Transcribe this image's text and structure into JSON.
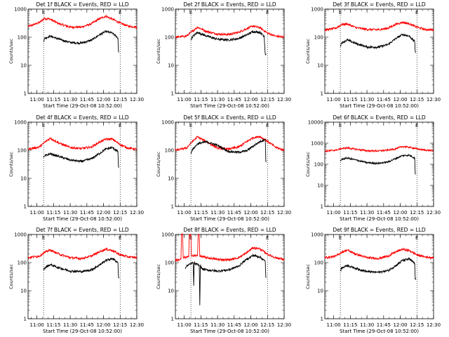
{
  "figure": {
    "background": "#ffffff"
  },
  "colors": {
    "events": "#000000",
    "lld": "#ff0000",
    "axis": "#000000"
  },
  "chart_data": [
    {
      "type": "line",
      "title": "Det 1f BLACK = Events, RED = LLD",
      "xlabel": "Start Time (29-Oct-08 10:52:00)",
      "ylabel": "Counts/sec",
      "yscale": "log",
      "ylim": [
        1,
        1000
      ],
      "yticks": [
        1,
        10,
        100,
        1000
      ],
      "ytick_labels": [
        "1",
        "10",
        "100",
        "1000"
      ],
      "xlim": [
        0,
        98
      ],
      "xticks": [
        8,
        23,
        38,
        53,
        68,
        83,
        98
      ],
      "xtick_labels": [
        "11:00",
        "11:15",
        "11:30",
        "11:45",
        "12:00",
        "12:15",
        "12:30"
      ],
      "vlines": [
        14,
        83
      ],
      "marker": "E",
      "marker_x": [
        14,
        83
      ],
      "series": [
        {
          "name": "LLD",
          "color": "#ff0000",
          "x": [
            0,
            10,
            15,
            20,
            28,
            38,
            48,
            57,
            64,
            70,
            76,
            83,
            90,
            98
          ],
          "y": [
            240,
            330,
            470,
            440,
            300,
            230,
            230,
            300,
            450,
            560,
            440,
            320,
            250,
            230
          ]
        },
        {
          "name": "Events",
          "color": "#000000",
          "x": [
            14,
            15,
            20,
            28,
            38,
            48,
            57,
            64,
            70,
            76,
            81,
            81.5,
            82
          ],
          "y": [
            70,
            92,
            110,
            85,
            65,
            62,
            78,
            120,
            160,
            140,
            95,
            30,
            30
          ]
        }
      ]
    },
    {
      "type": "line",
      "title": "Det 2f BLACK = Events, RED = LLD",
      "xlabel": "Start Time (29-Oct-08 10:52:00)",
      "ylabel": "Counts/sec",
      "yscale": "log",
      "ylim": [
        1,
        1000
      ],
      "yticks": [
        1,
        10,
        100,
        1000
      ],
      "ytick_labels": [
        "1",
        "10",
        "100",
        "1000"
      ],
      "xlim": [
        0,
        98
      ],
      "xticks": [
        8,
        23,
        38,
        53,
        68,
        83,
        98
      ],
      "xtick_labels": [
        "11:00",
        "11:15",
        "11:30",
        "11:45",
        "12:00",
        "12:15",
        "12:30"
      ],
      "vlines": [
        14,
        83
      ],
      "marker": "E",
      "marker_x": [
        14,
        83
      ],
      "series": [
        {
          "name": "LLD",
          "color": "#ff0000",
          "x": [
            0,
            10,
            15,
            20,
            28,
            38,
            48,
            57,
            64,
            70,
            76,
            83,
            90,
            98
          ],
          "y": [
            100,
            110,
            160,
            230,
            160,
            130,
            125,
            150,
            200,
            250,
            220,
            140,
            110,
            100
          ]
        },
        {
          "name": "Events",
          "color": "#000000",
          "x": [
            14,
            15,
            20,
            28,
            38,
            48,
            57,
            64,
            70,
            76,
            80,
            81,
            82
          ],
          "y": [
            80,
            100,
            150,
            110,
            85,
            80,
            90,
            120,
            160,
            150,
            110,
            25,
            25
          ]
        }
      ]
    },
    {
      "type": "line",
      "title": "Det 3f BLACK = Events, RED = LLD",
      "xlabel": "Start Time (29-Oct-08 10:52:00)",
      "ylabel": "Counts/sec",
      "yscale": "log",
      "ylim": [
        1,
        1000
      ],
      "yticks": [
        1,
        10,
        100,
        1000
      ],
      "ytick_labels": [
        "1",
        "10",
        "100",
        "1000"
      ],
      "xlim": [
        0,
        98
      ],
      "xticks": [
        8,
        23,
        38,
        53,
        68,
        83,
        98
      ],
      "xtick_labels": [
        "11:00",
        "11:15",
        "11:30",
        "11:45",
        "12:00",
        "12:15",
        "12:30"
      ],
      "vlines": [
        14,
        83
      ],
      "marker": "E",
      "marker_x": [
        14,
        83
      ],
      "series": [
        {
          "name": "LLD",
          "color": "#ff0000",
          "x": [
            0,
            10,
            15,
            20,
            28,
            38,
            48,
            57,
            64,
            70,
            76,
            83,
            90,
            98
          ],
          "y": [
            180,
            210,
            280,
            300,
            220,
            190,
            185,
            210,
            290,
            340,
            300,
            230,
            190,
            180
          ]
        },
        {
          "name": "Events",
          "color": "#000000",
          "x": [
            14,
            15,
            20,
            28,
            38,
            48,
            57,
            64,
            70,
            76,
            81,
            81.5,
            82
          ],
          "y": [
            50,
            62,
            80,
            60,
            45,
            44,
            55,
            90,
            125,
            110,
            70,
            30,
            30
          ]
        }
      ]
    },
    {
      "type": "line",
      "title": "Det 4f BLACK = Events, RED = LLD",
      "xlabel": "Start Time (29-Oct-08 10:52:00)",
      "ylabel": "Counts/sec",
      "yscale": "log",
      "ylim": [
        1,
        1000
      ],
      "yticks": [
        1,
        10,
        100,
        1000
      ],
      "ytick_labels": [
        "1",
        "10",
        "100",
        "1000"
      ],
      "xlim": [
        0,
        98
      ],
      "xticks": [
        8,
        23,
        38,
        53,
        68,
        83,
        98
      ],
      "xtick_labels": [
        "11:00",
        "11:15",
        "11:30",
        "11:45",
        "12:00",
        "12:15",
        "12:30"
      ],
      "vlines": [
        14,
        83
      ],
      "marker": "E",
      "marker_x": [
        14,
        83
      ],
      "series": [
        {
          "name": "LLD",
          "color": "#ff0000",
          "x": [
            0,
            10,
            15,
            20,
            28,
            38,
            48,
            57,
            64,
            70,
            76,
            83,
            90,
            98
          ],
          "y": [
            110,
            130,
            190,
            270,
            180,
            125,
            115,
            130,
            190,
            250,
            250,
            160,
            120,
            110
          ]
        },
        {
          "name": "Events",
          "color": "#000000",
          "x": [
            14,
            15,
            20,
            28,
            38,
            48,
            57,
            64,
            70,
            76,
            81,
            81.5,
            82
          ],
          "y": [
            55,
            62,
            75,
            60,
            45,
            40,
            50,
            75,
            110,
            125,
            90,
            25,
            25
          ]
        }
      ]
    },
    {
      "type": "line",
      "title": "Det 5f BLACK = Events, RED = LLD",
      "xlabel": "Start Time (29-Oct-08 10:52:00)",
      "ylabel": "Counts/sec",
      "yscale": "log",
      "ylim": [
        1,
        1000
      ],
      "yticks": [
        1,
        10,
        100,
        1000
      ],
      "ytick_labels": [
        "1",
        "10",
        "100",
        "1000"
      ],
      "xlim": [
        0,
        98
      ],
      "xticks": [
        8,
        23,
        38,
        53,
        68,
        83,
        98
      ],
      "xtick_labels": [
        "11:00",
        "11:15",
        "11:30",
        "11:45",
        "12:00",
        "12:15",
        "12:30"
      ],
      "vlines": [
        14,
        83
      ],
      "marker": "E",
      "marker_x": [
        14,
        83
      ],
      "series": [
        {
          "name": "LLD",
          "color": "#ff0000",
          "x": [
            0,
            10,
            15,
            20,
            28,
            38,
            48,
            57,
            64,
            70,
            76,
            83,
            90,
            98
          ],
          "y": [
            100,
            120,
            200,
            300,
            200,
            120,
            110,
            130,
            200,
            280,
            310,
            210,
            130,
            100
          ]
        },
        {
          "name": "Events",
          "color": "#000000",
          "x": [
            14,
            15,
            20,
            28,
            38,
            48,
            57,
            64,
            70,
            76,
            81,
            81.5,
            82
          ],
          "y": [
            80,
            100,
            170,
            200,
            150,
            90,
            85,
            95,
            140,
            200,
            250,
            40,
            40
          ]
        }
      ]
    },
    {
      "type": "line",
      "title": "Det 6f BLACK = Events, RED = LLD",
      "xlabel": "Start Time (29-Oct-08 10:52:00)",
      "ylabel": "Counts/sec",
      "yscale": "log",
      "ylim": [
        1,
        10000
      ],
      "yticks": [
        1,
        10,
        100,
        1000,
        10000
      ],
      "ytick_labels": [
        "1",
        "10",
        "100",
        "1000",
        "10000"
      ],
      "xlim": [
        0,
        98
      ],
      "xticks": [
        8,
        23,
        38,
        53,
        68,
        83,
        98
      ],
      "xtick_labels": [
        "11:00",
        "11:15",
        "11:30",
        "11:45",
        "12:00",
        "12:15",
        "12:30"
      ],
      "vlines": [
        14,
        83
      ],
      "marker": "E",
      "marker_x": [
        14,
        83
      ],
      "series": [
        {
          "name": "LLD",
          "color": "#ff0000",
          "x": [
            0,
            10,
            15,
            20,
            28,
            38,
            48,
            57,
            64,
            70,
            76,
            83,
            90,
            98
          ],
          "y": [
            420,
            470,
            560,
            600,
            520,
            440,
            430,
            470,
            550,
            700,
            650,
            540,
            470,
            440
          ]
        },
        {
          "name": "Events",
          "color": "#000000",
          "x": [
            14,
            15,
            20,
            28,
            38,
            48,
            57,
            64,
            70,
            76,
            81,
            81.5,
            82
          ],
          "y": [
            140,
            170,
            200,
            160,
            120,
            110,
            130,
            190,
            260,
            270,
            200,
            35,
            35
          ]
        }
      ]
    },
    {
      "type": "line",
      "title": "Det 7f BLACK = Events, RED = LLD",
      "xlabel": "Start Time (29-Oct-08 10:52:00)",
      "ylabel": "Counts/sec",
      "yscale": "log",
      "ylim": [
        1,
        1000
      ],
      "yticks": [
        1,
        10,
        100,
        1000
      ],
      "ytick_labels": [
        "1",
        "10",
        "100",
        "1000"
      ],
      "xlim": [
        0,
        98
      ],
      "xticks": [
        8,
        23,
        38,
        53,
        68,
        83,
        98
      ],
      "xtick_labels": [
        "11:00",
        "11:15",
        "11:30",
        "11:45",
        "12:00",
        "12:15",
        "12:30"
      ],
      "vlines": [
        14,
        83
      ],
      "marker": "E",
      "marker_x": [
        14,
        83
      ],
      "series": [
        {
          "name": "LLD",
          "color": "#ff0000",
          "x": [
            0,
            10,
            15,
            20,
            28,
            38,
            48,
            57,
            64,
            70,
            76,
            83,
            90,
            98
          ],
          "y": [
            150,
            170,
            230,
            280,
            200,
            150,
            140,
            170,
            240,
            300,
            270,
            190,
            160,
            150
          ]
        },
        {
          "name": "Events",
          "color": "#000000",
          "x": [
            14,
            15,
            20,
            28,
            38,
            48,
            57,
            64,
            70,
            76,
            81,
            81.5,
            82
          ],
          "y": [
            55,
            65,
            85,
            65,
            50,
            48,
            55,
            80,
            120,
            140,
            100,
            30,
            30
          ]
        }
      ]
    },
    {
      "type": "line",
      "title": "Det 8f BLACK = Events, RED = LLD",
      "xlabel": "Start Time (29-Oct-08 10:52:00)",
      "ylabel": "Counts/sec",
      "yscale": "log",
      "ylim": [
        1,
        1000
      ],
      "yticks": [
        1,
        10,
        100,
        1000
      ],
      "ytick_labels": [
        "1",
        "10",
        "100",
        "1000"
      ],
      "xlim": [
        0,
        98
      ],
      "xticks": [
        8,
        23,
        38,
        53,
        68,
        83,
        98
      ],
      "xtick_labels": [
        "11:00",
        "11:15",
        "11:30",
        "11:45",
        "12:00",
        "12:15",
        "12:30"
      ],
      "vlines": [
        14,
        83
      ],
      "marker": "E",
      "marker_x": [
        14,
        83
      ],
      "series": [
        {
          "name": "LLD",
          "color": "#ff0000",
          "x": [
            0,
            5,
            5.5,
            6.5,
            7,
            12,
            12.5,
            14,
            14.5,
            20,
            20.5,
            21.5,
            22,
            28,
            38,
            48,
            57,
            64,
            70,
            76,
            83,
            90,
            98
          ],
          "y": [
            120,
            130,
            1000,
            1000,
            150,
            160,
            1000,
            1000,
            170,
            180,
            1000,
            1000,
            170,
            150,
            130,
            125,
            150,
            220,
            340,
            310,
            200,
            150,
            130
          ]
        },
        {
          "name": "Events",
          "color": "#000000",
          "x": [
            9,
            10,
            15,
            16,
            16.5,
            17,
            18,
            20,
            21.5,
            22,
            22.5,
            24,
            28,
            38,
            48,
            57,
            64,
            70,
            76,
            81,
            81.5,
            82
          ],
          "y": [
            60,
            75,
            95,
            100,
            15,
            100,
            90,
            85,
            80,
            3,
            80,
            60,
            55,
            50,
            55,
            75,
            130,
            180,
            160,
            110,
            30,
            30
          ]
        }
      ]
    },
    {
      "type": "line",
      "title": "Det 9f BLACK = Events, RED = LLD",
      "xlabel": "Start Time (29-Oct-08 10:52:00)",
      "ylabel": "Counts/sec",
      "yscale": "log",
      "ylim": [
        1,
        1000
      ],
      "yticks": [
        1,
        10,
        100,
        1000
      ],
      "ytick_labels": [
        "1",
        "10",
        "100",
        "1000"
      ],
      "xlim": [
        0,
        98
      ],
      "xticks": [
        8,
        23,
        38,
        53,
        68,
        83,
        98
      ],
      "xtick_labels": [
        "11:00",
        "11:15",
        "11:30",
        "11:45",
        "12:00",
        "12:15",
        "12:30"
      ],
      "vlines": [
        14,
        83
      ],
      "marker": "E",
      "marker_x": [
        14,
        83
      ],
      "series": [
        {
          "name": "LLD",
          "color": "#ff0000",
          "x": [
            0,
            10,
            15,
            20,
            28,
            38,
            48,
            57,
            64,
            70,
            76,
            83,
            90,
            98
          ],
          "y": [
            150,
            170,
            230,
            280,
            200,
            150,
            140,
            170,
            240,
            300,
            270,
            190,
            160,
            150
          ]
        },
        {
          "name": "Events",
          "color": "#000000",
          "x": [
            14,
            15,
            20,
            28,
            38,
            48,
            57,
            64,
            70,
            76,
            81,
            81.5,
            82
          ],
          "y": [
            50,
            62,
            80,
            62,
            48,
            45,
            52,
            78,
            120,
            135,
            95,
            25,
            25
          ]
        }
      ]
    }
  ]
}
